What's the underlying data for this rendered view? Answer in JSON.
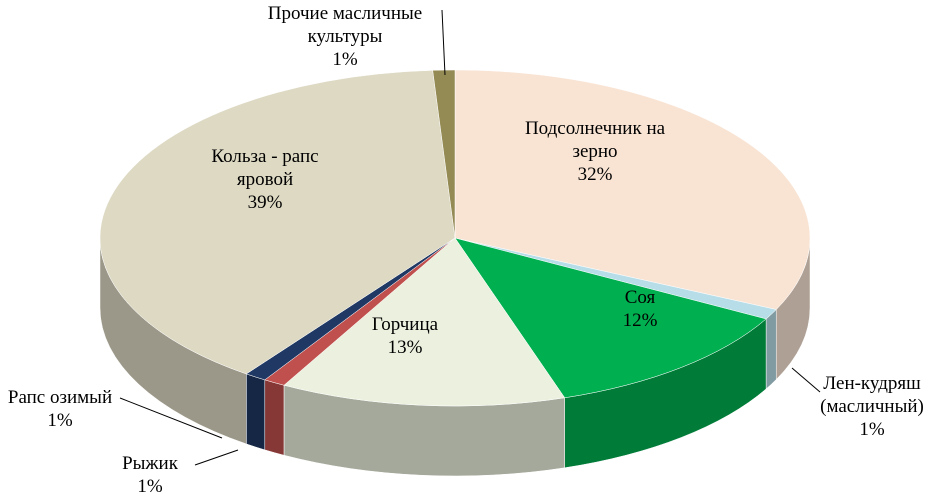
{
  "chart_data": {
    "type": "pie",
    "three_d": true,
    "categories": [
      "Подсолнечник на зерно",
      "Лен-кудряш (масличный)",
      "Соя",
      "Горчица",
      "Рыжик",
      "Рапс озимый",
      "Кольза - рапс яровой",
      "Прочие масличные культуры"
    ],
    "values": [
      32,
      1,
      12,
      13,
      1,
      1,
      39,
      1
    ],
    "value_labels": [
      "32%",
      "1%",
      "12%",
      "13%",
      "1%",
      "1%",
      "39%",
      "1%"
    ],
    "colors": [
      "#f9e4d4",
      "#b7dde8",
      "#00b050",
      "#ebf1de",
      "#c0504d",
      "#1f3864",
      "#ddd9c3",
      "#948a54"
    ]
  }
}
